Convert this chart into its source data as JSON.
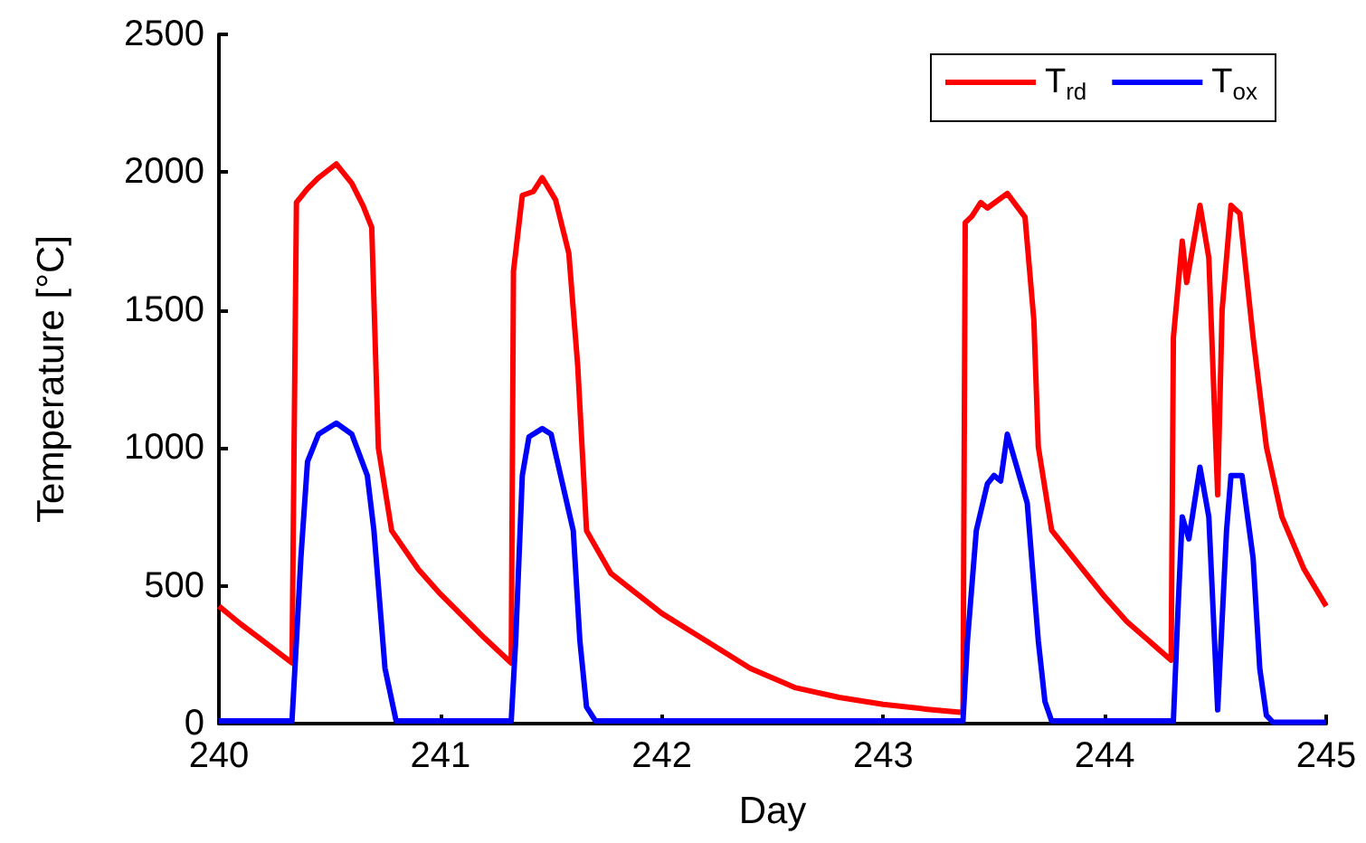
{
  "chart_data": {
    "type": "line",
    "xlabel": "Day",
    "ylabel": "Temperature [°C]",
    "xlim": [
      240,
      245
    ],
    "xticks": [
      240,
      241,
      242,
      243,
      244,
      245
    ],
    "ylim": [
      0,
      2500
    ],
    "yticks": [
      0,
      500,
      1000,
      1500,
      2000,
      2500
    ],
    "grid": false,
    "legend": "top right",
    "marker": "none",
    "line_style": "solid",
    "series": [
      {
        "name": "T$_{rd}$",
        "color": "#ff0000",
        "x": [
          240,
          240.1,
          240.2,
          240.33,
          240.35,
          240.4,
          240.45,
          240.53,
          240.6,
          240.65,
          240.69,
          240.72,
          240.78,
          240.9,
          241.0,
          241.1,
          241.2,
          241.32,
          241.33,
          241.37,
          241.42,
          241.46,
          241.52,
          241.58,
          241.62,
          241.66,
          241.77,
          242.0,
          242.2,
          242.4,
          242.6,
          242.8,
          243.0,
          243.2,
          243.36,
          243.37,
          243.4,
          243.44,
          243.47,
          243.56,
          243.64,
          243.68,
          243.7,
          243.76,
          243.9,
          244.0,
          244.1,
          244.2,
          244.3,
          244.31,
          244.35,
          244.37,
          244.43,
          244.47,
          244.51,
          244.53,
          244.57,
          244.61,
          244.67,
          244.73,
          244.8,
          244.9,
          245
        ],
        "values": [
          426,
          360,
          300,
          220,
          1890,
          1940,
          1980,
          2030,
          1960,
          1880,
          1800,
          1000,
          700,
          560,
          470,
          390,
          310,
          220,
          1640,
          1916,
          1930,
          1980,
          1900,
          1706,
          1300,
          700,
          545,
          400,
          300,
          200,
          131,
          95,
          70,
          52,
          40,
          1817,
          1840,
          1890,
          1870,
          1923,
          1837,
          1463,
          1004,
          702,
          560,
          460,
          370,
          300,
          230,
          1400,
          1750,
          1600,
          1880,
          1690,
          830,
          1500,
          1880,
          1850,
          1400,
          1004,
          750,
          560,
          426
        ]
      },
      {
        "name": "T$_{ox}$",
        "color": "#0000ff",
        "x": [
          240,
          240.33,
          240.35,
          240.37,
          240.4,
          240.45,
          240.53,
          240.6,
          240.67,
          240.7,
          240.75,
          240.8,
          241.32,
          241.34,
          241.37,
          241.4,
          241.46,
          241.5,
          241.6,
          241.63,
          241.66,
          241.7,
          243.36,
          243.38,
          243.42,
          243.47,
          243.5,
          243.53,
          243.56,
          243.65,
          243.7,
          243.73,
          243.76,
          244.31,
          244.33,
          244.35,
          244.38,
          244.43,
          244.47,
          244.51,
          244.55,
          244.57,
          244.62,
          244.67,
          244.7,
          244.73,
          244.76,
          245
        ],
        "values": [
          10,
          10,
          300,
          600,
          950,
          1050,
          1090,
          1050,
          900,
          700,
          200,
          10,
          10,
          300,
          900,
          1040,
          1070,
          1050,
          700,
          300,
          60,
          10,
          10,
          300,
          700,
          870,
          900,
          880,
          1050,
          800,
          300,
          80,
          10,
          10,
          400,
          750,
          670,
          930,
          750,
          50,
          700,
          900,
          900,
          600,
          200,
          30,
          5,
          5
        ]
      }
    ]
  }
}
